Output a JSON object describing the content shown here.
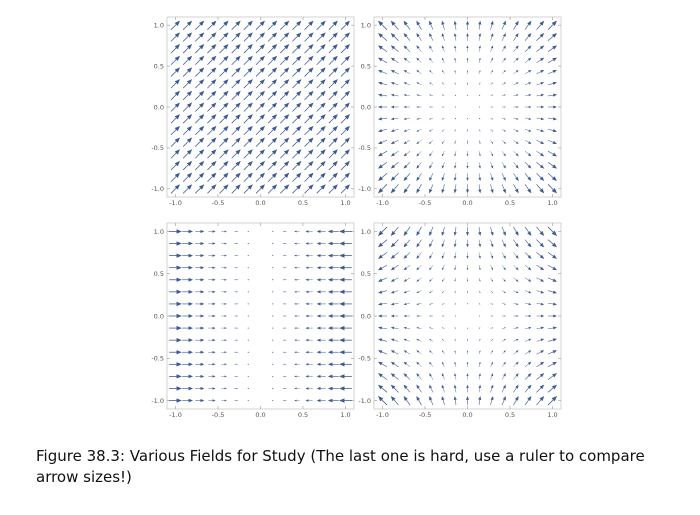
{
  "figure": {
    "caption": "Figure 38.3: Various Fields for Study (The last one is hard, use a ruler to compare arrow sizes!)"
  },
  "chart_data": [
    {
      "type": "vector_field",
      "field": "uniform",
      "title": "",
      "xlim": [
        -1.1,
        1.1
      ],
      "ylim": [
        -1.1,
        1.1
      ],
      "x_ticks": [
        "-1.0",
        "-0.5",
        "0.0",
        "0.5",
        "1.0"
      ],
      "y_ticks": [
        "-1.0",
        "-0.5",
        "0.0",
        "0.5",
        "1.0"
      ],
      "grid_points": 15,
      "arrow_color": "#3d5a91"
    },
    {
      "type": "vector_field",
      "field": "radial_outward",
      "title": "",
      "xlim": [
        -1.1,
        1.1
      ],
      "ylim": [
        -1.1,
        1.1
      ],
      "x_ticks": [
        "-1.0",
        "-0.5",
        "0.0",
        "0.5",
        "1.0"
      ],
      "y_ticks": [
        "-1.0",
        "-0.5",
        "0.0",
        "0.5",
        "1.0"
      ],
      "grid_points": 15,
      "arrow_color": "#3d5a91"
    },
    {
      "type": "vector_field",
      "field": "horizontal_converging",
      "title": "",
      "xlim": [
        -1.1,
        1.1
      ],
      "ylim": [
        -1.1,
        1.1
      ],
      "x_ticks": [
        "-1.0",
        "-0.5",
        "0.0",
        "0.5",
        "1.0"
      ],
      "y_ticks": [
        "-1.0",
        "-0.5",
        "0.0",
        "0.5",
        "1.0"
      ],
      "grid_points": 15,
      "arrow_color": "#3d5a91"
    },
    {
      "type": "vector_field",
      "field": "saddle",
      "title": "",
      "xlim": [
        -1.1,
        1.1
      ],
      "ylim": [
        -1.1,
        1.1
      ],
      "x_ticks": [
        "-1.0",
        "-0.5",
        "0.0",
        "0.5",
        "1.0"
      ],
      "y_ticks": [
        "-1.0",
        "-0.5",
        "0.0",
        "0.5",
        "1.0"
      ],
      "grid_points": 15,
      "arrow_color": "#3d5a91"
    }
  ]
}
